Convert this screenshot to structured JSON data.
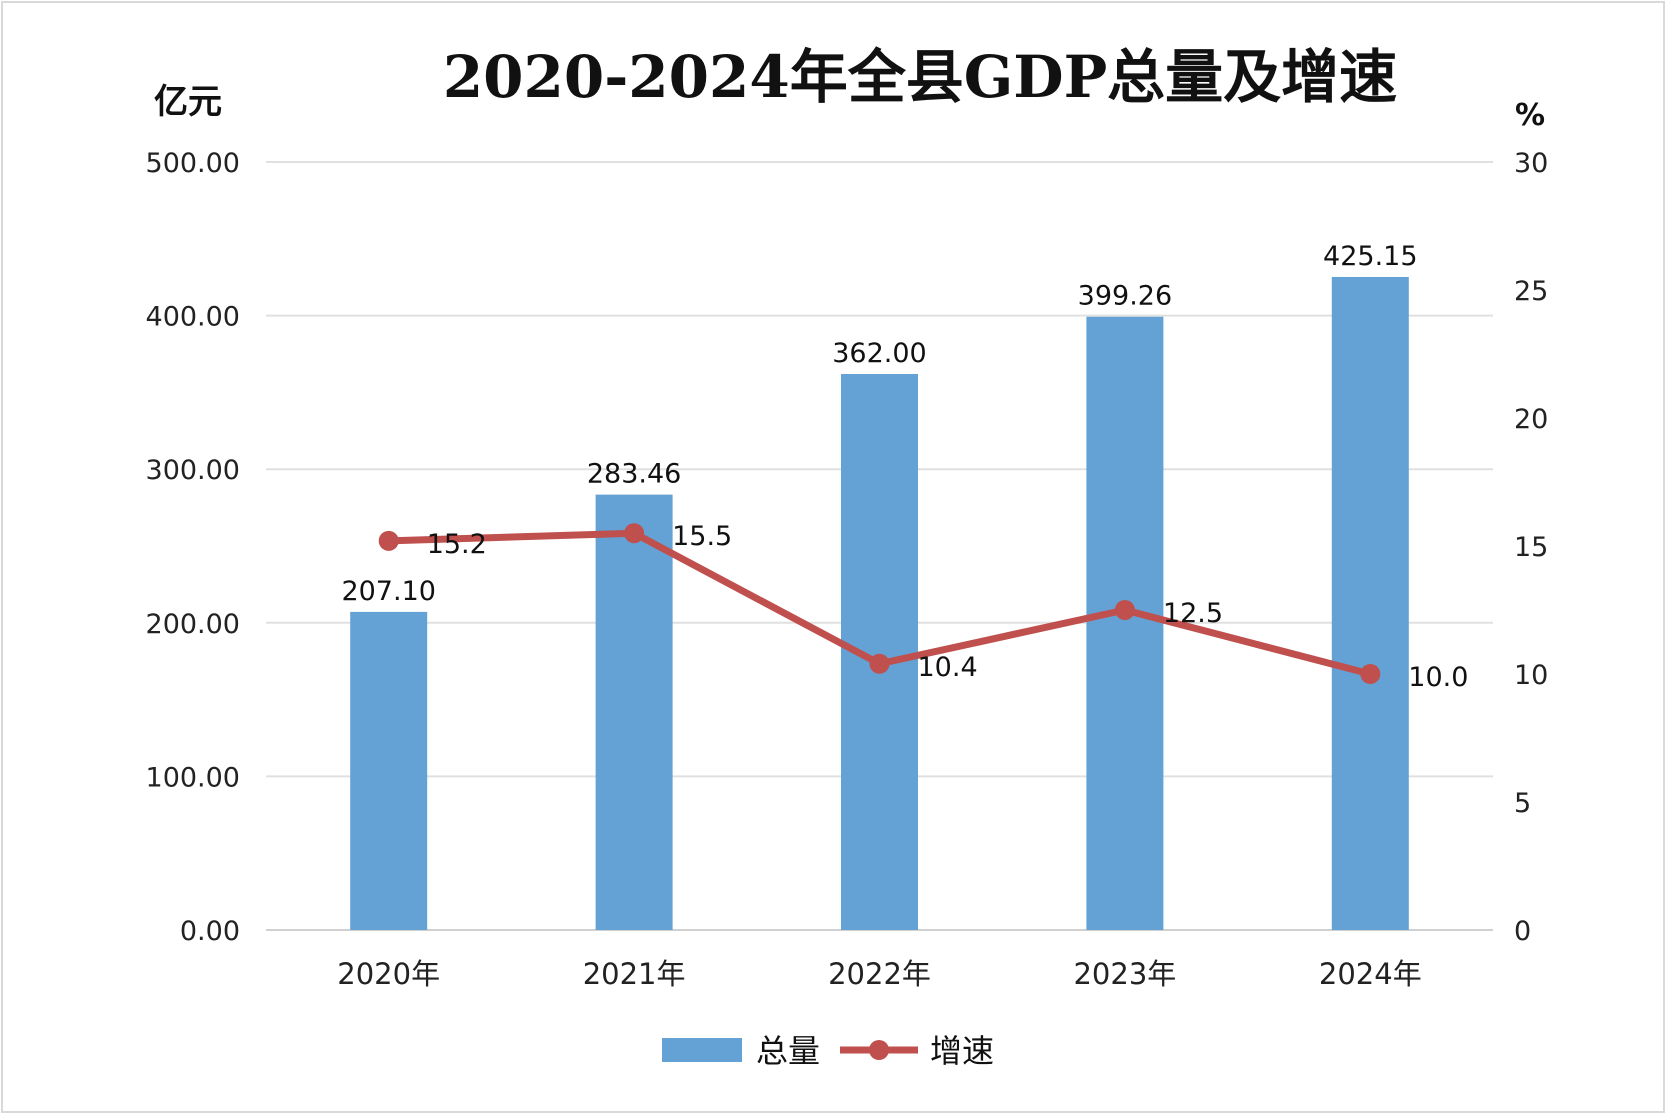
{
  "chart_data": {
    "type": "bar+line",
    "title": "2020-2024年全县GDP总量及增速",
    "categories": [
      "2020年",
      "2021年",
      "2022年",
      "2023年",
      "2024年"
    ],
    "series": [
      {
        "name": "总量",
        "type": "bar",
        "axis": "left",
        "values": [
          207.1,
          283.46,
          362.0,
          399.26,
          425.15
        ],
        "labels": [
          "207.10",
          "283.46",
          "362.00",
          "399.26",
          "425.15"
        ],
        "color": "#64A2D6"
      },
      {
        "name": "增速",
        "type": "line",
        "axis": "right",
        "values": [
          15.2,
          15.5,
          10.4,
          12.5,
          10.0
        ],
        "labels": [
          "15.2",
          "15.5",
          "10.4",
          "12.5",
          "10.0"
        ],
        "color": "#C0504D"
      }
    ],
    "ylabel_left": "亿元",
    "ylabel_right": "%",
    "ylim_left": [
      0,
      500
    ],
    "ylim_right": [
      0,
      30
    ],
    "yticks_left": [
      "0.00",
      "100.00",
      "200.00",
      "300.00",
      "400.00",
      "500.00"
    ],
    "yticks_right": [
      "0",
      "5",
      "10",
      "15",
      "20",
      "25",
      "30"
    ],
    "grid": true,
    "legend_position": "bottom"
  }
}
